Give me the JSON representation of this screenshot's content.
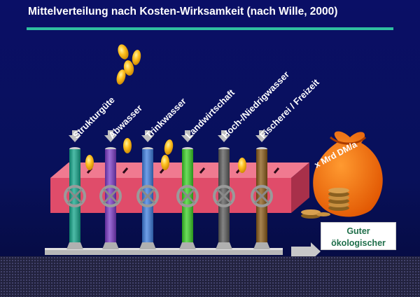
{
  "title": "Mittelverteilung nach Kosten-Wirksamkeit (nach Wille, 2000)",
  "categories": [
    {
      "label": "Strukturgüte",
      "pipe_color": "#12a58a"
    },
    {
      "label": "Abwasser",
      "pipe_color": "#7c3ac8"
    },
    {
      "label": "Trinkwasser",
      "pipe_color": "#3f7ee0"
    },
    {
      "label": "Landwirtschaft",
      "pipe_color": "#3bd026"
    },
    {
      "label": "Hoch-/Niedrigwasser",
      "pipe_color": "#5a5a5a"
    },
    {
      "label": "Fischerei / Freizeit",
      "pipe_color": "#8a5a16"
    }
  ],
  "money_bag": {
    "label": "x Mrd DM/a",
    "color": "#ff6a00"
  },
  "callout": {
    "line1": "Guter",
    "line2": "ökologischer"
  },
  "colors": {
    "background": "#0a0f66",
    "accent_rule": "#2fbfa0",
    "distributor_box": "#e04c6a",
    "coin": "#ffc020",
    "arrow": "#c0c0c0",
    "base_pipe": "#b8b8b8"
  },
  "icons": [
    "coin-icon",
    "down-arrow-icon",
    "valve-wheel-icon",
    "money-bag-icon",
    "coin-stack-icon",
    "right-arrow-icon"
  ]
}
